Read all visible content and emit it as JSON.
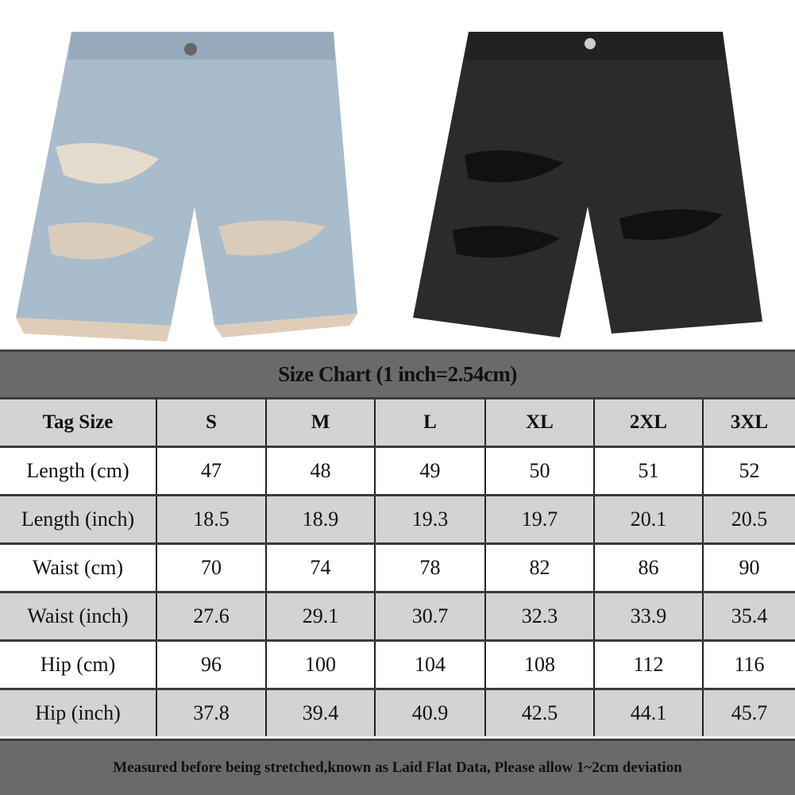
{
  "images": [
    {
      "name": "light-blue-ripped-denim-shorts",
      "color": "#a9bccb"
    },
    {
      "name": "black-ripped-denim-shorts",
      "color": "#2a2a2a"
    }
  ],
  "size_chart": {
    "title": "Size Chart (1 inch=2.54cm)",
    "header": [
      "Tag Size",
      "S",
      "M",
      "L",
      "XL",
      "2XL",
      "3XL"
    ],
    "rows": [
      [
        "Length (cm)",
        "47",
        "48",
        "49",
        "50",
        "51",
        "52"
      ],
      [
        "Length (inch)",
        "18.5",
        "18.9",
        "19.3",
        "19.7",
        "20.1",
        "20.5"
      ],
      [
        "Waist (cm)",
        "70",
        "74",
        "78",
        "82",
        "86",
        "90"
      ],
      [
        "Waist (inch)",
        "27.6",
        "29.1",
        "30.7",
        "32.3",
        "33.9",
        "35.4"
      ],
      [
        "Hip (cm)",
        "96",
        "100",
        "104",
        "108",
        "112",
        "116"
      ],
      [
        "Hip (inch)",
        "37.8",
        "39.4",
        "40.9",
        "42.5",
        "44.1",
        "45.7"
      ]
    ],
    "footer": "Measured before being stretched,known as Laid Flat Data, Please allow 1~2cm deviation",
    "colors": {
      "title_bg": "#6b6a6a",
      "alt_row_bg": "#d4d2d2",
      "row_bg": "#ffffff"
    }
  }
}
